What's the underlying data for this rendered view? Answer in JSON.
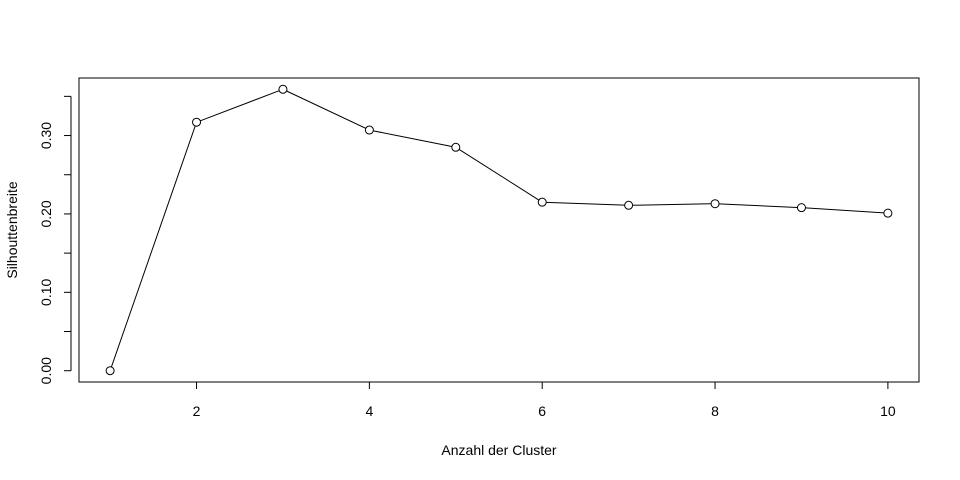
{
  "chart_data": {
    "type": "line",
    "title": "",
    "xlabel": "Anzahl der Cluster",
    "ylabel": "Silhouttenbreite",
    "x": [
      1,
      2,
      3,
      4,
      5,
      6,
      7,
      8,
      9,
      10
    ],
    "values": [
      0.0,
      0.317,
      0.359,
      0.307,
      0.285,
      0.215,
      0.211,
      0.213,
      0.208,
      0.201
    ],
    "xlim": [
      0.64,
      10.36
    ],
    "ylim": [
      -0.0144,
      0.3734
    ],
    "xticks": [
      2,
      4,
      6,
      8,
      10
    ],
    "xtick_labels": [
      "2",
      "4",
      "6",
      "8",
      "10"
    ],
    "yticks": [
      0.0,
      0.05,
      0.1,
      0.15,
      0.2,
      0.25,
      0.3,
      0.35
    ],
    "ytick_labels": [
      "0.00",
      "",
      "0.10",
      "",
      "0.20",
      "",
      "0.30",
      ""
    ],
    "marker": "open-circle",
    "line_color": "#000000",
    "grid": false,
    "legend": "none"
  }
}
